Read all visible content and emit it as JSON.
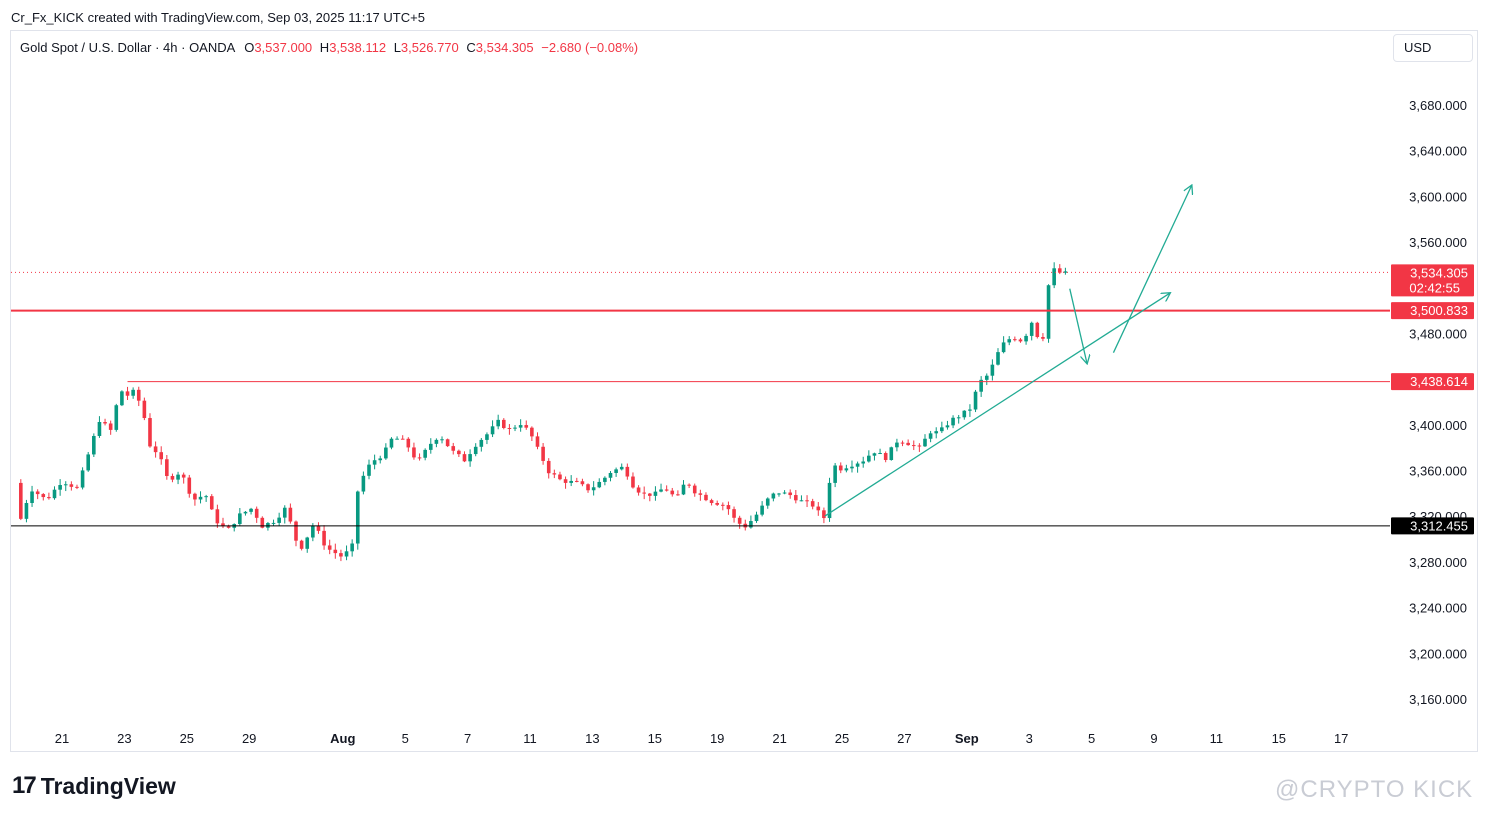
{
  "credit": "Cr_Fx_KICK created with TradingView.com, Sep 03, 2025 11:17 UTC+5",
  "legend": {
    "symbol": "Gold Spot / U.S. Dollar · 4h · OANDA",
    "o_label": "O",
    "o_value": "3,537.000",
    "h_label": "H",
    "h_value": "3,538.112",
    "l_label": "L",
    "l_value": "3,526.770",
    "c_label": "C",
    "c_value": "3,534.305",
    "change": "−2.680 (−0.08%)"
  },
  "currency": "USD",
  "brand": {
    "logo_glyph": "17",
    "name": "TradingView"
  },
  "watermark": "@CRYPTO KICK",
  "colors": {
    "up": "#089981",
    "down": "#f23645",
    "support": "#000000",
    "trend": "#22ab94"
  },
  "chart_data": {
    "type": "candlestick",
    "title": "Gold Spot / U.S. Dollar · 4h · OANDA",
    "ylim": [
      3125,
      3725
    ],
    "y_ticks": [
      "3,160.000",
      "3,200.000",
      "3,240.000",
      "3,280.000",
      "3,320.000",
      "3,360.000",
      "3,400.000",
      "3,440.000",
      "3,480.000",
      "3,520.000",
      "3,560.000",
      "3,600.000",
      "3,640.000",
      "3,680.000"
    ],
    "x_ticks": [
      {
        "label": "21",
        "day": 0
      },
      {
        "label": "23",
        "day": 2
      },
      {
        "label": "25",
        "day": 4
      },
      {
        "label": "29",
        "day": 6
      },
      {
        "label": "Aug",
        "day": 9,
        "bold": true
      },
      {
        "label": "5",
        "day": 11
      },
      {
        "label": "7",
        "day": 13
      },
      {
        "label": "11",
        "day": 15
      },
      {
        "label": "13",
        "day": 17
      },
      {
        "label": "15",
        "day": 19
      },
      {
        "label": "19",
        "day": 21
      },
      {
        "label": "21",
        "day": 23
      },
      {
        "label": "25",
        "day": 25
      },
      {
        "label": "27",
        "day": 27
      },
      {
        "label": "Sep",
        "day": 29,
        "bold": true
      },
      {
        "label": "3",
        "day": 31
      },
      {
        "label": "5",
        "day": 33
      },
      {
        "label": "9",
        "day": 35
      },
      {
        "label": "11",
        "day": 37
      },
      {
        "label": "15",
        "day": 39
      },
      {
        "label": "17",
        "day": 41
      }
    ],
    "price_path": [
      [
        -1.5,
        3350
      ],
      [
        -1.4,
        3312
      ],
      [
        -1.0,
        3345
      ],
      [
        -0.5,
        3335
      ],
      [
        0,
        3352
      ],
      [
        0.5,
        3345
      ],
      [
        0.9,
        3380
      ],
      [
        1.2,
        3405
      ],
      [
        1.6,
        3395
      ],
      [
        1.85,
        3435
      ],
      [
        2.0,
        3425
      ],
      [
        2.3,
        3430
      ],
      [
        2.6,
        3415
      ],
      [
        2.75,
        3385
      ],
      [
        3.1,
        3375
      ],
      [
        3.4,
        3352
      ],
      [
        3.8,
        3360
      ],
      [
        4.2,
        3335
      ],
      [
        4.6,
        3340
      ],
      [
        4.9,
        3318
      ],
      [
        5.3,
        3308
      ],
      [
        5.7,
        3322
      ],
      [
        6.1,
        3328
      ],
      [
        6.4,
        3312
      ],
      [
        6.9,
        3318
      ],
      [
        7.1,
        3330
      ],
      [
        7.4,
        3310
      ],
      [
        7.6,
        3290
      ],
      [
        7.9,
        3305
      ],
      [
        8.1,
        3316
      ],
      [
        8.3,
        3300
      ],
      [
        8.55,
        3292
      ],
      [
        9.0,
        3285
      ],
      [
        9.3,
        3295
      ],
      [
        9.5,
        3348
      ],
      [
        9.9,
        3368
      ],
      [
        10.3,
        3375
      ],
      [
        10.6,
        3390
      ],
      [
        11.0,
        3386
      ],
      [
        11.4,
        3368
      ],
      [
        11.8,
        3384
      ],
      [
        12.1,
        3392
      ],
      [
        12.5,
        3378
      ],
      [
        12.9,
        3370
      ],
      [
        13.3,
        3385
      ],
      [
        13.6,
        3392
      ],
      [
        14.0,
        3404
      ],
      [
        14.3,
        3396
      ],
      [
        14.7,
        3402
      ],
      [
        15.0,
        3394
      ],
      [
        15.2,
        3382
      ],
      [
        15.6,
        3360
      ],
      [
        16.0,
        3352
      ],
      [
        16.5,
        3350
      ],
      [
        16.9,
        3344
      ],
      [
        17.3,
        3352
      ],
      [
        17.6,
        3360
      ],
      [
        18.0,
        3364
      ],
      [
        18.3,
        3348
      ],
      [
        18.6,
        3340
      ],
      [
        19.0,
        3340
      ],
      [
        19.3,
        3346
      ],
      [
        19.7,
        3336
      ],
      [
        20.0,
        3352
      ],
      [
        20.3,
        3342
      ],
      [
        20.8,
        3334
      ],
      [
        21.3,
        3330
      ],
      [
        21.6,
        3316
      ],
      [
        21.9,
        3312
      ],
      [
        22.2,
        3320
      ],
      [
        22.6,
        3335
      ],
      [
        22.9,
        3342
      ],
      [
        23.3,
        3340
      ],
      [
        23.7,
        3334
      ],
      [
        24.1,
        3330
      ],
      [
        24.3,
        3322
      ],
      [
        24.5,
        3318
      ],
      [
        24.65,
        3368
      ],
      [
        24.9,
        3362
      ],
      [
        25.3,
        3366
      ],
      [
        25.7,
        3370
      ],
      [
        26.0,
        3378
      ],
      [
        26.4,
        3372
      ],
      [
        26.8,
        3388
      ],
      [
        27.1,
        3385
      ],
      [
        27.5,
        3380
      ],
      [
        27.8,
        3395
      ],
      [
        28.1,
        3394
      ],
      [
        28.5,
        3405
      ],
      [
        28.85,
        3410
      ],
      [
        29.1,
        3415
      ],
      [
        29.4,
        3438
      ],
      [
        29.7,
        3445
      ],
      [
        30.1,
        3470
      ],
      [
        30.45,
        3478
      ],
      [
        30.8,
        3474
      ],
      [
        31.1,
        3492
      ],
      [
        31.2,
        3485
      ],
      [
        31.3,
        3475
      ],
      [
        31.45,
        3478
      ],
      [
        31.6,
        3520
      ],
      [
        31.7,
        3535
      ],
      [
        31.9,
        3538
      ],
      [
        32.0,
        3533
      ],
      [
        32.3,
        3534
      ]
    ],
    "last_close": 3534.305,
    "levels": [
      {
        "name": "last-price",
        "price": 3534.305,
        "label": "3,534.305",
        "sub": "02:42:55",
        "color": "#f23645",
        "style": "dotted"
      },
      {
        "name": "resistance",
        "price": 3500.833,
        "label": "3,500.833",
        "color": "#f23645",
        "style": "thick"
      },
      {
        "name": "support-high",
        "price": 3438.614,
        "label": "3,438.614",
        "color": "#f23645",
        "style": "thin",
        "from_day": 2.1
      },
      {
        "name": "support-low",
        "price": 3312.455,
        "label": "3,312.455",
        "color": "#000000",
        "style": "thin"
      }
    ],
    "drawings": [
      {
        "name": "trendline",
        "from": [
          24.45,
          3321
        ],
        "to": [
          35.5,
          3516
        ],
        "arrow": true
      },
      {
        "name": "pullback-arrow",
        "from": [
          32.3,
          3520
        ],
        "to": [
          32.85,
          3455
        ],
        "arrow": true
      },
      {
        "name": "breakout-arrow",
        "from": [
          33.7,
          3464
        ],
        "to": [
          36.2,
          3610
        ],
        "arrow": true
      }
    ]
  }
}
